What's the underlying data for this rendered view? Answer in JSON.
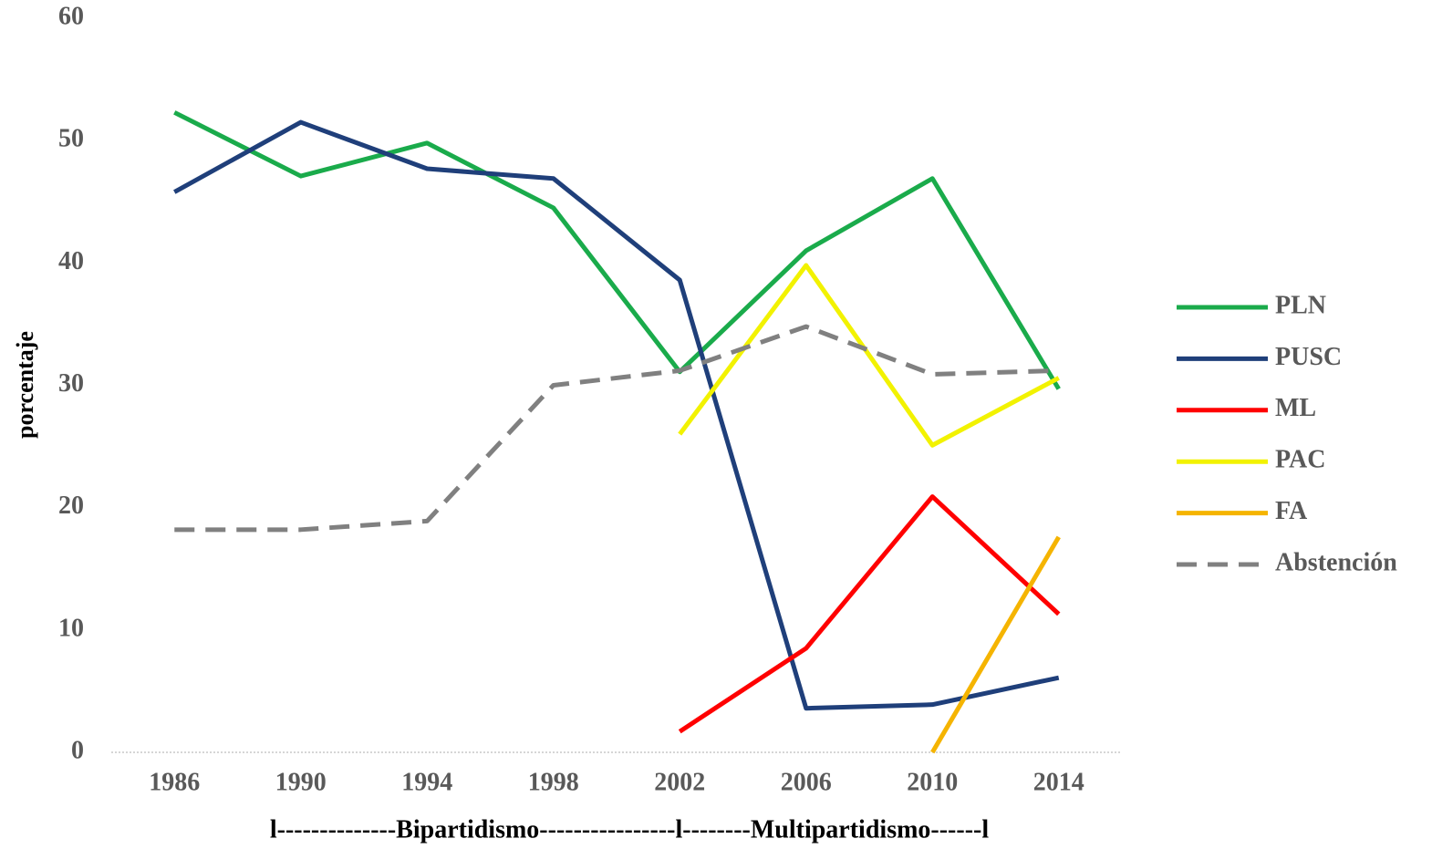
{
  "chart_data": {
    "type": "line",
    "y_label": "porcentaje",
    "annotation": "l--------------Bipartidismo----------------l--------Multipartidismo------l",
    "categories": [
      "1986",
      "1990",
      "1994",
      "1998",
      "2002",
      "2006",
      "2010",
      "2014"
    ],
    "series": [
      {
        "name": "PLN",
        "color": "#1aab4b",
        "values": [
          52.3,
          47.1,
          49.8,
          44.5,
          31.1,
          41.0,
          46.9,
          29.7
        ]
      },
      {
        "name": "PUSC",
        "color": "#1f3f7a",
        "values": [
          45.8,
          51.5,
          47.7,
          46.9,
          38.6,
          3.6,
          3.9,
          6.1
        ]
      },
      {
        "name": "ML",
        "color": "#ff0000",
        "values": [
          null,
          null,
          null,
          null,
          1.7,
          8.5,
          20.9,
          11.3
        ]
      },
      {
        "name": "PAC",
        "color": "#f2f200",
        "values": [
          null,
          null,
          null,
          null,
          26.0,
          39.8,
          25.1,
          30.6
        ]
      },
      {
        "name": "FA",
        "color": "#f5b400",
        "values": [
          null,
          null,
          null,
          null,
          null,
          null,
          0,
          17.6
        ]
      },
      {
        "name": "Abstención",
        "color": "#808080",
        "dashed": true,
        "values": [
          18.2,
          18.2,
          18.9,
          30.0,
          31.2,
          34.8,
          30.9,
          31.2
        ]
      }
    ],
    "ylim": [
      0,
      60
    ],
    "yticks": [
      0,
      10,
      20,
      30,
      40,
      50,
      60
    ],
    "grid": false,
    "legend": "right"
  }
}
